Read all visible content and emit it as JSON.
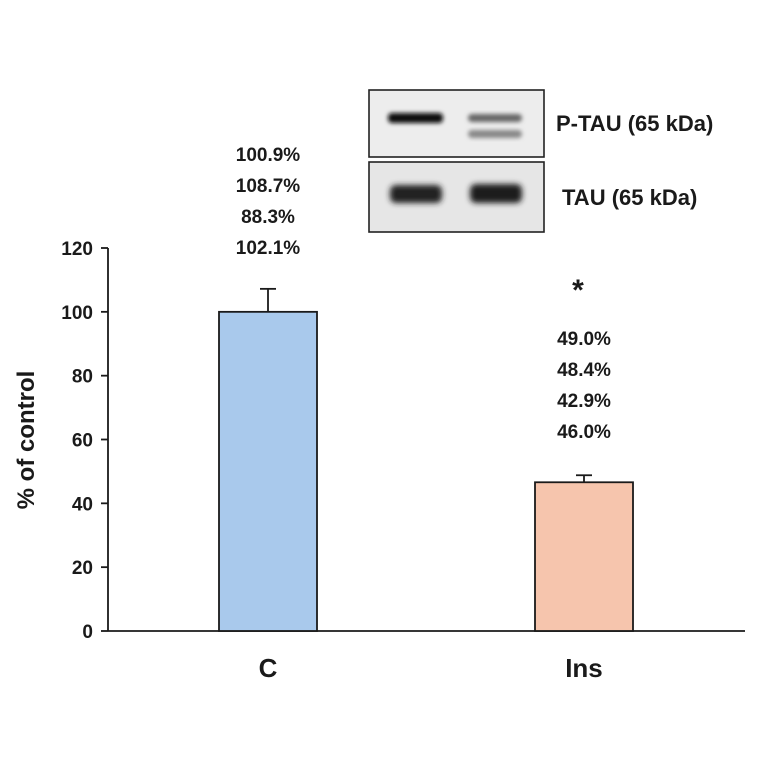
{
  "chart_data": {
    "type": "bar",
    "ylabel": "% of control",
    "xlabel": "",
    "ylim": [
      0,
      120
    ],
    "yticks": [
      0,
      20,
      40,
      60,
      80,
      100,
      120
    ],
    "categories": [
      "C",
      "Ins"
    ],
    "values": [
      100,
      46.6
    ],
    "errors": [
      7.2,
      2.2
    ],
    "colors": [
      "#a9c9ec",
      "#f6c5ad"
    ],
    "individual_values": [
      [
        "100.9%",
        "108.7%",
        "88.3%",
        "102.1%"
      ],
      [
        "49.0%",
        "48.4%",
        "42.9%",
        "46.0%"
      ]
    ],
    "significance": [
      "",
      "*"
    ],
    "grid": false,
    "legend": "none"
  },
  "blot": {
    "bands": [
      {
        "label": "P-TAU (65 kDa)"
      },
      {
        "label": "TAU (65 kDa)"
      }
    ]
  }
}
